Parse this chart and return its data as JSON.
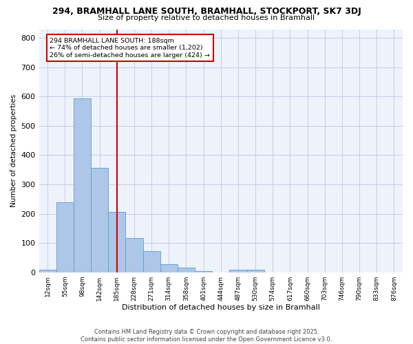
{
  "title1": "294, BRAMHALL LANE SOUTH, BRAMHALL, STOCKPORT, SK7 3DJ",
  "title2": "Size of property relative to detached houses in Bramhall",
  "xlabel": "Distribution of detached houses by size in Bramhall",
  "ylabel": "Number of detached properties",
  "categories": [
    "12sqm",
    "55sqm",
    "98sqm",
    "142sqm",
    "185sqm",
    "228sqm",
    "271sqm",
    "314sqm",
    "358sqm",
    "401sqm",
    "444sqm",
    "487sqm",
    "530sqm",
    "574sqm",
    "617sqm",
    "660sqm",
    "703sqm",
    "746sqm",
    "790sqm",
    "833sqm",
    "876sqm"
  ],
  "values": [
    8,
    240,
    595,
    357,
    207,
    117,
    72,
    28,
    15,
    5,
    0,
    8,
    8,
    0,
    0,
    0,
    0,
    0,
    0,
    0,
    0
  ],
  "bar_color": "#aec6e8",
  "bar_edge_color": "#5a9fd4",
  "vline_x_index": 4,
  "vline_color": "#cc0000",
  "annotation_title": "294 BRAMHALL LANE SOUTH: 188sqm",
  "annotation_line1": "← 74% of detached houses are smaller (1,202)",
  "annotation_line2": "26% of semi-detached houses are larger (424) →",
  "annotation_box_color": "#cc0000",
  "ylim": [
    0,
    830
  ],
  "yticks": [
    0,
    100,
    200,
    300,
    400,
    500,
    600,
    700,
    800
  ],
  "footer": "Contains HM Land Registry data © Crown copyright and database right 2025.\nContains public sector information licensed under the Open Government Licence v3.0.",
  "bg_color": "#eef2fb",
  "grid_color": "#c5cce8"
}
